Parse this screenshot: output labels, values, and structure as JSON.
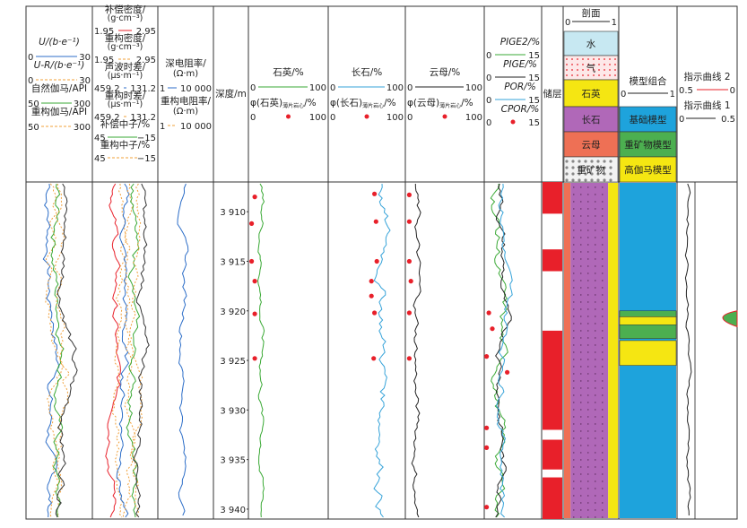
{
  "colors": {
    "red": "#e8202a",
    "green": "#3aa935",
    "blue": "#2d6ec8",
    "orange": "#f0a03a",
    "teal": "#36a3d9",
    "purple": "#b068b8",
    "yellow": "#f5e612",
    "salmon": "#ee7055",
    "water": "#c7e8f2",
    "gasbg": "#fde8e8",
    "heavybg": "#f2f2f2",
    "modelblue": "#1ea3dc",
    "modelgreen": "#4caf50",
    "modelyellow": "#f5e612"
  },
  "header": {
    "track1": {
      "lines": [
        {
          "label": "U/(b·e⁻¹)",
          "min": "0",
          "max": "30",
          "style": "solid",
          "color": "blue"
        },
        {
          "label": "U-R/(b·e⁻¹)",
          "min": "0",
          "max": "30",
          "style": "dash",
          "color": "orange"
        },
        {
          "label": "自然伽马/API",
          "min": "50",
          "max": "300",
          "style": "solid",
          "color": "green"
        },
        {
          "label": "重构伽马/API",
          "min": "50",
          "max": "300",
          "style": "dash",
          "color": "orange"
        }
      ]
    },
    "track2": {
      "lines": [
        {
          "label": "补偿密度/",
          "unit": "(g·cm⁻³)",
          "min": "1.95",
          "max": "2.95",
          "style": "solid",
          "color": "red"
        },
        {
          "label": "重构密度/",
          "unit": "(g·cm⁻³)",
          "min": "1.95",
          "max": "2.95",
          "style": "dash",
          "color": "orange"
        },
        {
          "label": "声波时差/",
          "unit": "(μs·m⁻¹)",
          "min": "459.2",
          "max": "131.2",
          "style": "solid",
          "color": "blue"
        },
        {
          "label": "重构时差/",
          "unit": "(μs·m⁻¹)",
          "min": "459.2",
          "max": "131.2",
          "style": "dash",
          "color": "orange"
        },
        {
          "label": "补偿中子/%",
          "unit": "",
          "min": "45",
          "max": "−15",
          "style": "solid",
          "color": "green"
        },
        {
          "label": "重构中子/%",
          "unit": "",
          "min": "45",
          "max": "−15",
          "style": "dash",
          "color": "orange"
        }
      ]
    },
    "track3": {
      "lines": [
        {
          "label": "深电阻率/",
          "unit": "(Ω·m)",
          "min": "1",
          "max": "10 000",
          "style": "solid",
          "color": "blue"
        },
        {
          "label": "重构电阻率/",
          "unit": "(Ω·m)",
          "min": "1",
          "max": "10 000",
          "style": "dash",
          "color": "orange"
        }
      ]
    },
    "depth": "深度/m",
    "track5": {
      "title": "石英/%",
      "min": "0",
      "max": "100",
      "label2": "φ(石英)",
      "sub2": "薄片岩心",
      "suf2": "/%",
      "min2": "0",
      "max2": "100"
    },
    "track6": {
      "title": "长石/%",
      "min": "0",
      "max": "100",
      "label2": "φ(长石)",
      "sub2": "薄片岩心",
      "suf2": "/%",
      "min2": "0",
      "max2": "100"
    },
    "track7": {
      "title": "云母/%",
      "min": "0",
      "max": "100",
      "label2": "φ(云母)",
      "sub2": "薄片岩心",
      "suf2": "/%",
      "min2": "0",
      "max2": "100"
    },
    "track8": {
      "lines": [
        {
          "label": "PIGE2/%",
          "min": "0",
          "max": "15"
        },
        {
          "label": "PIGE/%",
          "min": "0",
          "max": "15"
        },
        {
          "label": "POR/%",
          "min": "0",
          "max": "15"
        },
        {
          "label": "CPOR/%",
          "min": "0",
          "max": "15"
        }
      ]
    },
    "reservoir": "储层",
    "profile": {
      "title": "剖面",
      "min": "0",
      "max": "1",
      "legend": [
        "水",
        "气",
        "石英",
        "长石",
        "云母",
        "重矿物"
      ]
    },
    "model": {
      "title": "模型组合",
      "min": "0",
      "max": "1",
      "legend": [
        "基础模型",
        "重矿物模型",
        "高伽马模型"
      ]
    },
    "indicator": {
      "line2": "指示曲线 2",
      "min2": "0.5",
      "max2": "0",
      "line1": "指示曲线 1",
      "min1": "0",
      "max1": "0.5"
    }
  },
  "chart_data": {
    "type": "line",
    "depth_range": [
      3907,
      3941
    ],
    "depth_ticks": [
      "3 910",
      "3 915",
      "3 920",
      "3 925",
      "3 930",
      "3 935",
      "3 940"
    ],
    "depth_tick_values": [
      3910,
      3915,
      3920,
      3925,
      3930,
      3935,
      3940
    ],
    "core_quartz": [
      [
        3908.5,
        8
      ],
      [
        3911.2,
        4
      ],
      [
        3915,
        4
      ],
      [
        3917,
        8
      ],
      [
        3920.3,
        8
      ],
      [
        3924.8,
        8
      ]
    ],
    "core_feldspar": [
      [
        3908.2,
        60
      ],
      [
        3911,
        62
      ],
      [
        3915,
        63
      ],
      [
        3917,
        56
      ],
      [
        3918.5,
        56
      ],
      [
        3920.2,
        60
      ],
      [
        3924.8,
        59
      ]
    ],
    "core_mica": [
      [
        3908.3,
        5
      ],
      [
        3911,
        5
      ],
      [
        3915,
        5
      ],
      [
        3917,
        7
      ],
      [
        3920.2,
        5
      ],
      [
        3924.8,
        5
      ]
    ],
    "core_cpor": [
      [
        3920.2,
        4
      ],
      [
        3921.8,
        7
      ],
      [
        3924.6,
        2
      ],
      [
        3926.2,
        20
      ],
      [
        3931.8,
        2
      ],
      [
        3933.8,
        2
      ],
      [
        3939.8,
        2
      ]
    ],
    "reservoir_intervals": [
      [
        3907,
        3910.2
      ],
      [
        3913.8,
        3916
      ],
      [
        3922,
        3932
      ],
      [
        3933,
        3936
      ],
      [
        3936.8,
        3941
      ]
    ],
    "model_heavy_intervals": [
      [
        3920,
        3920.6
      ],
      [
        3921.4,
        3922.8
      ]
    ],
    "model_gamma_intervals": [
      [
        3920.6,
        3921.4
      ],
      [
        3923,
        3925.5
      ]
    ]
  }
}
